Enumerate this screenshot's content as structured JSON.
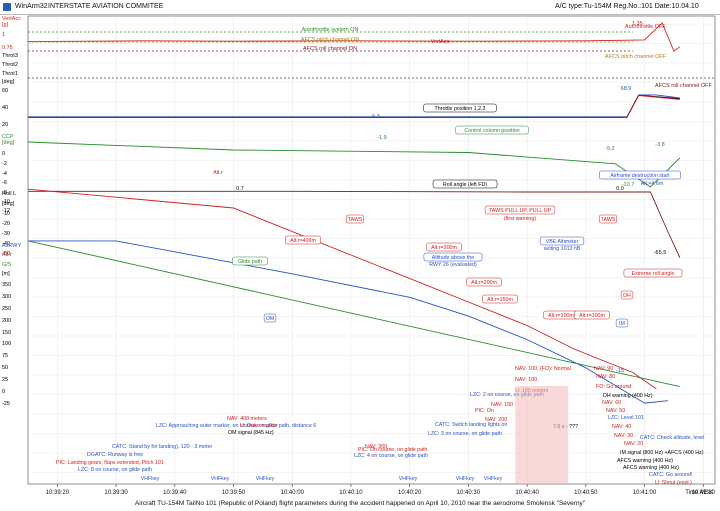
{
  "window": {
    "app_name": "WinArm32",
    "org_name": "INTERSTATE AVIATION COMMITEE",
    "aircraft_info": "A/C type:Tu-154M Reg.No.:101 Date:10.04.10"
  },
  "footer": {
    "caption": "Aircraft TU-154M TailNo 101 (Republic of Poland) flight parameters during the accident happened on April 10, 2010 near the aerodrome Smolensk \"Severny\""
  },
  "chart_data": {
    "type": "line",
    "x_axis": {
      "label": "Time MSK",
      "ticks": [
        "10:39:20",
        "10:39:30",
        "10:39:40",
        "10:39:50",
        "10:40:00",
        "10:40:10",
        "10:40:20",
        "10:40:30",
        "10:40:40",
        "10:40:50",
        "10:41:00",
        "10:41:10"
      ],
      "range": [
        "10:39:15",
        "10:41:12"
      ]
    },
    "y_axis_labels": [
      {
        "text": "VertAcc",
        "color": "#d02020"
      },
      {
        "text": "[g]",
        "color": "#d02020"
      },
      {
        "text": "1",
        "color": "#d02020"
      },
      {
        "text": "0.75",
        "color": "#d02020"
      },
      {
        "text": "Throt3",
        "color": "#000000"
      },
      {
        "text": "Throt2",
        "color": "#000000"
      },
      {
        "text": "Throt1",
        "color": "#000000"
      },
      {
        "text": "[deg]",
        "color": "#000000"
      },
      {
        "text": "60",
        "color": "#000000"
      },
      {
        "text": "40",
        "color": "#000000"
      },
      {
        "text": "20",
        "color": "#000000"
      },
      {
        "text": "CCP",
        "color": "#2a8a2a"
      },
      {
        "text": "[deg]",
        "color": "#2a8a2a"
      },
      {
        "text": "0",
        "color": "#000000"
      },
      {
        "text": "-2",
        "color": "#000000"
      },
      {
        "text": "-4",
        "color": "#000000"
      },
      {
        "text": "-6",
        "color": "#000000"
      },
      {
        "text": "-8",
        "color": "#000000"
      },
      {
        "text": "-10",
        "color": "#000000"
      },
      {
        "text": "-12",
        "color": "#000000"
      },
      {
        "text": "Roll L",
        "color": "#000000"
      },
      {
        "text": "[deg]",
        "color": "#000000"
      },
      {
        "text": "-10",
        "color": "#000000"
      },
      {
        "text": "-20",
        "color": "#000000"
      },
      {
        "text": "-30",
        "color": "#000000"
      },
      {
        "text": "-40",
        "color": "#000000"
      },
      {
        "text": "-50",
        "color": "#000000"
      },
      {
        "text": "AltRWY",
        "color": "#2a50c8"
      },
      {
        "text": "Alt.r",
        "color": "#d02020"
      },
      {
        "text": "G/S",
        "color": "#2a8a2a"
      },
      {
        "text": "[m]",
        "color": "#000000"
      },
      {
        "text": "350",
        "color": "#000000"
      },
      {
        "text": "300",
        "color": "#000000"
      },
      {
        "text": "250",
        "color": "#000000"
      },
      {
        "text": "200",
        "color": "#000000"
      },
      {
        "text": "150",
        "color": "#000000"
      },
      {
        "text": "100",
        "color": "#000000"
      },
      {
        "text": "75",
        "color": "#000000"
      },
      {
        "text": "50",
        "color": "#000000"
      },
      {
        "text": "25",
        "color": "#000000"
      },
      {
        "text": "0",
        "color": "#000000"
      },
      {
        "text": "-25",
        "color": "#000000"
      }
    ],
    "series": [
      {
        "name": "VertAcc",
        "color": "#d02020",
        "points": [
          [
            "10:39:15",
            0.92
          ],
          [
            "10:39:35",
            0.94
          ],
          [
            "10:39:50",
            0.93
          ],
          [
            "10:40:10",
            0.94
          ],
          [
            "10:40:30",
            0.93
          ],
          [
            "10:40:50",
            0.94
          ],
          [
            "10:41:00",
            0.96
          ],
          [
            "10:41:03",
            1.35
          ],
          [
            "10:41:05",
            0.7
          ],
          [
            "10:41:06",
            0.8
          ]
        ]
      },
      {
        "name": "Throt1",
        "color": "#2a50c8",
        "points": [
          [
            "10:39:15",
            6.3
          ],
          [
            "10:40:00",
            6.3
          ],
          [
            "10:40:50",
            6.3
          ],
          [
            "10:40:57",
            6.3
          ],
          [
            "10:40:59",
            68.9
          ],
          [
            "10:41:02",
            68.9
          ],
          [
            "10:41:06",
            60
          ]
        ]
      },
      {
        "name": "Throt2",
        "color": "#000000",
        "points": [
          [
            "10:39:15",
            5
          ],
          [
            "10:40:57",
            5
          ],
          [
            "10:40:59",
            68
          ],
          [
            "10:41:06",
            58
          ]
        ]
      },
      {
        "name": "Throt3",
        "color": "#d02020",
        "points": [
          [
            "10:39:15",
            4
          ],
          [
            "10:40:57",
            4
          ],
          [
            "10:40:59",
            67
          ],
          [
            "10:41:06",
            56
          ]
        ]
      },
      {
        "name": "CCP",
        "color": "#2a8a2a",
        "points": [
          [
            "10:39:15",
            0.0
          ],
          [
            "10:39:50",
            -1.9
          ],
          [
            "10:40:30",
            -2.5
          ],
          [
            "10:40:55",
            -5.2
          ],
          [
            "10:41:01",
            -10.7
          ],
          [
            "10:41:06",
            -3.8
          ]
        ]
      },
      {
        "name": "Roll L",
        "color": "#7a1a1a",
        "points": [
          [
            "10:39:15",
            0.7
          ],
          [
            "10:40:00",
            0.7
          ],
          [
            "10:40:40",
            0.0
          ],
          [
            "10:41:01",
            0.0
          ],
          [
            "10:41:04",
            -40
          ],
          [
            "10:41:06",
            -65.5
          ]
        ]
      },
      {
        "name": "AltRWY",
        "color": "#2a50c8",
        "points": [
          [
            "10:39:15",
            330
          ],
          [
            "10:39:30",
            330
          ],
          [
            "10:40:00",
            260
          ],
          [
            "10:40:20",
            210
          ],
          [
            "10:40:30",
            170
          ],
          [
            "10:40:40",
            120
          ],
          [
            "10:40:50",
            60
          ],
          [
            "10:41:00",
            -15
          ],
          [
            "10:41:04",
            -10
          ]
        ]
      },
      {
        "name": "Alt.r",
        "color": "#d02020",
        "points": [
          [
            "10:39:15",
            440
          ],
          [
            "10:39:50",
            400
          ],
          [
            "10:40:10",
            300
          ],
          [
            "10:40:30",
            200
          ],
          [
            "10:40:40",
            150
          ],
          [
            "10:40:48",
            100
          ],
          [
            "10:40:58",
            50
          ],
          [
            "10:41:02",
            15
          ]
        ]
      },
      {
        "name": "Glide path",
        "color": "#2a8a2a",
        "points": [
          [
            "10:39:15",
            330
          ],
          [
            "10:41:06",
            20
          ]
        ]
      }
    ],
    "annotations_top": [
      {
        "text": "Autothrottle system ON",
        "color": "#2a8a2a"
      },
      {
        "text": "AFCS pitch channel ON",
        "color": "#b0801a"
      },
      {
        "text": "AFCS roll channel ON",
        "color": "#7a1a1a"
      },
      {
        "text": "Autothrottle OFF",
        "color": "#d02020"
      },
      {
        "text": "AFCS pitch channel OFF",
        "color": "#b0801a"
      },
      {
        "text": "AFCS roll channel OFF",
        "color": "#7a1a1a"
      },
      {
        "text": "1.35",
        "color": "#d02020"
      },
      {
        "text": "VertAcc",
        "color": "#d02020"
      }
    ],
    "values_labels": [
      {
        "text": "6.3",
        "color": "#2a50c8"
      },
      {
        "text": "68.9",
        "color": "#2a50c8"
      },
      {
        "text": "-1.9",
        "color": "#2a8a2a"
      },
      {
        "text": "-5.2",
        "color": "#2a8a2a"
      },
      {
        "text": "-3.8",
        "color": "#2a8a2a"
      },
      {
        "text": "-10.7",
        "color": "#2a8a2a"
      },
      {
        "text": "0.7",
        "color": "#000000"
      },
      {
        "text": "0.0",
        "color": "#000000"
      },
      {
        "text": "-65.5",
        "color": "#000000"
      },
      {
        "text": "-15",
        "color": "#2a50c8"
      }
    ],
    "callouts": [
      {
        "text": "Throttle position 1,2,3",
        "color": "#000000"
      },
      {
        "text": "Control column position",
        "color": "#2a8a2a"
      },
      {
        "text": "Roll angle (left FD)",
        "color": "#000000"
      },
      {
        "text": "Airframe destruction start",
        "color": "#2a50c8"
      },
      {
        "text": "Alt.=4.6m",
        "color": "#2a50c8"
      },
      {
        "text": "TAWS",
        "color": "#d02020"
      },
      {
        "text": "TAWS  PULL UP, PULL UP",
        "color": "#d02020"
      },
      {
        "text": "(first warning)",
        "color": "#d02020"
      },
      {
        "text": "TAWS",
        "color": "#d02020"
      },
      {
        "text": "VBE Altimeter",
        "color": "#2a50c8"
      },
      {
        "text": "setting 1013 hB",
        "color": "#2a50c8"
      },
      {
        "text": "Glide path",
        "color": "#2a8a2a"
      },
      {
        "text": "Alt.r",
        "color": "#d02020"
      },
      {
        "text": "Alt.r=400m",
        "color": "#d02020"
      },
      {
        "text": "Alt.r=300m",
        "color": "#d02020"
      },
      {
        "text": "Alt.r=200m",
        "color": "#d02020"
      },
      {
        "text": "Alt.r=150m",
        "color": "#d02020"
      },
      {
        "text": "Alt.r=100m",
        "color": "#d02020"
      },
      {
        "text": "Alt.r=100m",
        "color": "#d02020"
      },
      {
        "text": "Altitude above the",
        "color": "#2a50c8"
      },
      {
        "text": "RWY 26 (evaluated)",
        "color": "#2a50c8"
      },
      {
        "text": "Extreme roll angle",
        "color": "#d02020"
      },
      {
        "text": "DH",
        "color": "#d02020"
      },
      {
        "text": "OM",
        "color": "#2a50c8"
      },
      {
        "text": "IM",
        "color": "#2a50c8"
      }
    ],
    "events": [
      {
        "text": "NAV: 100,  (FO): Normal",
        "color": "#d02020"
      },
      {
        "text": "NAV: 90",
        "color": "#d02020"
      },
      {
        "text": "NAV: 100",
        "color": "#d02020"
      },
      {
        "text": "NAV: 80",
        "color": "#d02020"
      },
      {
        "text": "U: 100 meters",
        "color": "#d02020"
      },
      {
        "text": "FO: Go around",
        "color": "#d02020"
      },
      {
        "text": "LZC: 2 on course, on glide path",
        "color": "#2a50c8"
      },
      {
        "text": "DH warning (400 Hz)",
        "color": "#000000"
      },
      {
        "text": "NAV: 150",
        "color": "#d02020"
      },
      {
        "text": "NAV: 60",
        "color": "#d02020"
      },
      {
        "text": "PIC: On",
        "color": "#d02020"
      },
      {
        "text": "NAV: 50",
        "color": "#d02020"
      },
      {
        "text": "NAV: 200",
        "color": "#d02020"
      },
      {
        "text": "LZC: Level 101",
        "color": "#2a50c8"
      },
      {
        "text": "NAV: 400 meters",
        "color": "#d02020"
      },
      {
        "text": "CATC: Switch landing lights on",
        "color": "#2a50c8"
      },
      {
        "text": "7.6 s - ???",
        "color": "#000000"
      },
      {
        "text": "NAV: 40",
        "color": "#d02020"
      },
      {
        "text": "LZC: Approaching outer marker, on course, on glide path, distance 6",
        "color": "#2a50c8"
      },
      {
        "text": "U: Outer marker",
        "color": "#d02020"
      },
      {
        "text": "NAV: 30",
        "color": "#d02020"
      },
      {
        "text": "OM signal (845 Hz)",
        "color": "#000000"
      },
      {
        "text": "LZC: 3 on course, on glide path",
        "color": "#2a50c8"
      },
      {
        "text": "CATC: Check altitude, level",
        "color": "#2a50c8"
      },
      {
        "text": "CATC: Stand by for landing), 120 - 3 meter",
        "color": "#2a50c8"
      },
      {
        "text": "NAV: 300",
        "color": "#d02020"
      },
      {
        "text": "NAV: 20",
        "color": "#d02020"
      },
      {
        "text": "DGATC: Runway is free",
        "color": "#2a50c8"
      },
      {
        "text": "PIC: On course, on glide path",
        "color": "#d02020"
      },
      {
        "text": "IM signal (800 Hz) +AFCS (400 Hz)",
        "color": "#000000"
      },
      {
        "text": "PIC: Landing gears, flaps extended, Pitch 101",
        "color": "#d02020"
      },
      {
        "text": "LZC: 4 on course, on glide path",
        "color": "#2a50c8"
      },
      {
        "text": "AFCS warning (400 Hz)",
        "color": "#000000"
      },
      {
        "text": "LZC: 8 on course, on glide path",
        "color": "#2a50c8"
      },
      {
        "text": "AFCS warning (400 Hz)",
        "color": "#000000"
      },
      {
        "text": "CATC: Go around!",
        "color": "#2a50c8"
      },
      {
        "text": "U: Shout (expl.)",
        "color": "#d02020"
      }
    ],
    "vhf_labels": [
      "VHFkey",
      "VHFkey",
      "VHFkey",
      "VHFkey",
      "VHFkey",
      "VHFkey"
    ]
  }
}
